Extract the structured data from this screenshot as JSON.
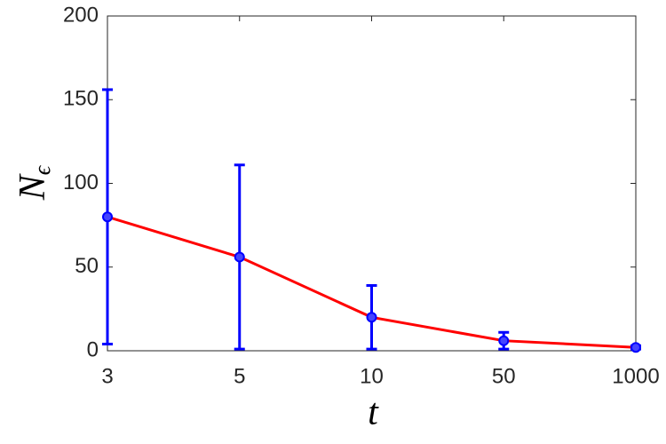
{
  "chart_data": {
    "type": "errorbar-line",
    "xlabel": "t",
    "ylabel": {
      "base": "N",
      "sub": "ϵ"
    },
    "categories": [
      "3",
      "5",
      "10",
      "50",
      "1000"
    ],
    "values": [
      80,
      56,
      20,
      6,
      2
    ],
    "errors": [
      76,
      55,
      19,
      5,
      1
    ],
    "line_color": "#ff0000",
    "marker_color": "#0000ff",
    "ylim": [
      0,
      200
    ],
    "yticks": [
      0,
      50,
      100,
      150,
      200
    ],
    "grid": false
  }
}
